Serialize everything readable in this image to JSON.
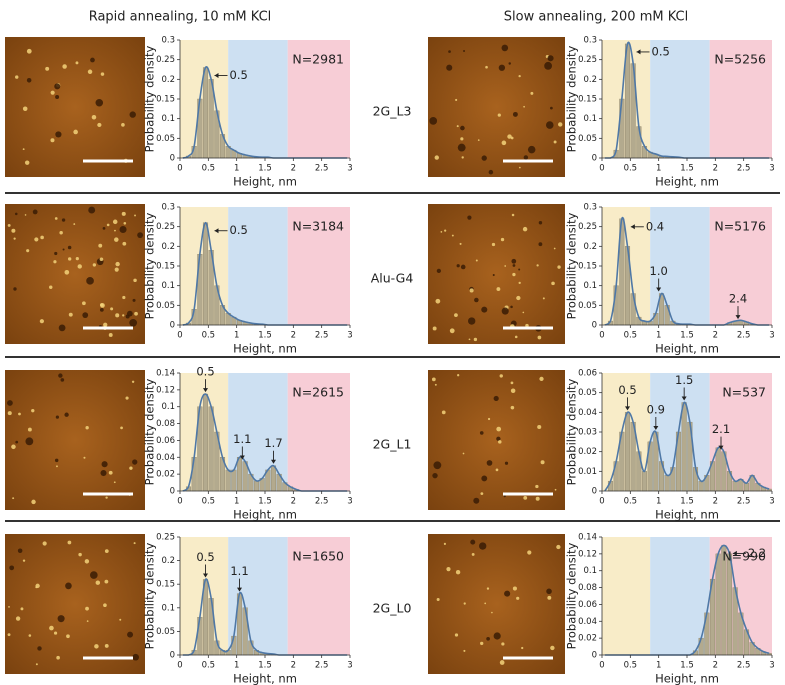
{
  "column_titles": [
    "Rapid annealing, 10 mM KCl",
    "Slow annealing, 200 mM KCl"
  ],
  "row_labels": [
    "2G_L3",
    "Alu-G4",
    "2G_L1",
    "2G_L0"
  ],
  "regions": [
    {
      "from": 0,
      "to": 0.85,
      "color": "#f8ecc8"
    },
    {
      "from": 0.85,
      "to": 1.9,
      "color": "#cde0f2"
    },
    {
      "from": 1.9,
      "to": 3,
      "color": "#f7cdd6"
    }
  ],
  "chart_data": [
    {
      "type": "histogram",
      "xlabel": "Height, nm",
      "ylabel": "Probability density",
      "n_label": "N=2981",
      "color": "#b3aa8e",
      "curve_color": "#4f78a6",
      "bins": [
        0,
        0.1,
        0.2,
        0.3,
        0.4,
        0.5,
        0.6,
        0.7,
        0.8,
        0.9,
        1,
        1.1,
        1.2,
        1.3,
        1.4,
        1.5,
        1.6,
        1.7,
        1.8,
        1.9,
        2,
        2.1,
        2.2,
        2.3,
        2.4,
        2.5,
        2.6,
        2.7,
        2.8,
        2.9,
        3
      ],
      "values": [
        0,
        0.005,
        0.03,
        0.15,
        0.23,
        0.2,
        0.12,
        0.06,
        0.03,
        0.02,
        0.012,
        0.008,
        0.005,
        0.003,
        0.002,
        0.002,
        0,
        0,
        0,
        0,
        0,
        0,
        0,
        0,
        0,
        0,
        0,
        0,
        0,
        0
      ],
      "xlim": [
        0,
        3
      ],
      "xticks": [
        0,
        0.5,
        1,
        1.5,
        2,
        2.5,
        3
      ],
      "ylim": [
        0,
        0.3
      ],
      "yticks": [
        0,
        0.05,
        0.1,
        0.15,
        0.2,
        0.25,
        0.3
      ],
      "annotations": [
        {
          "label": "0.5",
          "x": 0.45,
          "arrow": "left"
        }
      ]
    },
    {
      "type": "histogram",
      "xlabel": "Height, nm",
      "ylabel": "Probability density",
      "n_label": "N=5256",
      "color": "#b3aa8e",
      "curve_color": "#4f78a6",
      "bins": [
        0,
        0.1,
        0.2,
        0.3,
        0.4,
        0.5,
        0.6,
        0.7,
        0.8,
        0.9,
        1,
        1.1,
        1.2,
        1.3,
        1.4,
        1.5,
        1.6,
        1.7,
        1.8,
        1.9,
        2,
        2.1,
        2.2,
        2.3,
        2.4,
        2.5,
        2.6,
        2.7,
        2.8,
        2.9,
        3
      ],
      "values": [
        0,
        0,
        0.02,
        0.15,
        0.29,
        0.24,
        0.08,
        0.03,
        0.015,
        0.01,
        0.005,
        0.004,
        0.003,
        0.002,
        0,
        0,
        0,
        0,
        0,
        0,
        0,
        0,
        0,
        0,
        0,
        0,
        0,
        0,
        0,
        0
      ],
      "xlim": [
        0,
        3
      ],
      "xticks": [
        0,
        0.5,
        1,
        1.5,
        2,
        2.5,
        3
      ],
      "ylim": [
        0,
        0.3
      ],
      "yticks": [
        0,
        0.05,
        0.1,
        0.15,
        0.2,
        0.25,
        0.3
      ],
      "annotations": [
        {
          "label": "0.5",
          "x": 0.45,
          "arrow": "left"
        }
      ]
    },
    {
      "type": "histogram",
      "xlabel": "Height, nm",
      "ylabel": "Probability density",
      "n_label": "N=3184",
      "color": "#b3aa8e",
      "curve_color": "#4f78a6",
      "bins": [
        0,
        0.1,
        0.2,
        0.3,
        0.4,
        0.5,
        0.6,
        0.7,
        0.8,
        0.9,
        1,
        1.1,
        1.2,
        1.3,
        1.4,
        1.5,
        1.6,
        1.7,
        1.8,
        1.9,
        2,
        2.1,
        2.2,
        2.3,
        2.4,
        2.5,
        2.6,
        2.7,
        2.8,
        2.9,
        3
      ],
      "values": [
        0,
        0.005,
        0.04,
        0.18,
        0.26,
        0.19,
        0.1,
        0.05,
        0.03,
        0.02,
        0.012,
        0.008,
        0.005,
        0.003,
        0.002,
        0,
        0,
        0,
        0,
        0,
        0,
        0,
        0,
        0,
        0,
        0,
        0,
        0,
        0,
        0
      ],
      "xlim": [
        0,
        3
      ],
      "xticks": [
        0,
        0.5,
        1,
        1.5,
        2,
        2.5,
        3
      ],
      "ylim": [
        0,
        0.3
      ],
      "yticks": [
        0,
        0.05,
        0.1,
        0.15,
        0.2,
        0.25,
        0.3
      ],
      "annotations": [
        {
          "label": "0.5",
          "x": 0.45,
          "arrow": "left"
        }
      ]
    },
    {
      "type": "histogram",
      "xlabel": "Height, nm",
      "ylabel": "Probability density",
      "n_label": "N=5176",
      "color": "#b3aa8e",
      "curve_color": "#4f78a6",
      "bins": [
        0,
        0.1,
        0.2,
        0.3,
        0.4,
        0.5,
        0.6,
        0.7,
        0.8,
        0.9,
        1,
        1.1,
        1.2,
        1.3,
        1.4,
        1.5,
        1.6,
        1.7,
        1.8,
        1.9,
        2,
        2.1,
        2.2,
        2.3,
        2.4,
        2.5,
        2.6,
        2.7,
        2.8,
        2.9,
        3
      ],
      "values": [
        0,
        0.01,
        0.1,
        0.27,
        0.2,
        0.08,
        0.02,
        0.01,
        0.01,
        0.03,
        0.08,
        0.05,
        0.01,
        0.003,
        0.002,
        0.002,
        0,
        0,
        0,
        0,
        0,
        0,
        0.006,
        0.01,
        0.012,
        0.008,
        0.003,
        0,
        0,
        0
      ],
      "xlim": [
        0,
        3
      ],
      "xticks": [
        0,
        0.5,
        1,
        1.5,
        2,
        2.5,
        3
      ],
      "ylim": [
        0,
        0.3
      ],
      "yticks": [
        0,
        0.05,
        0.1,
        0.15,
        0.2,
        0.25,
        0.3
      ],
      "annotations": [
        {
          "label": "0.4",
          "x": 0.35,
          "arrow": "left"
        },
        {
          "label": "1.0",
          "x": 1.0,
          "arrow": "down"
        },
        {
          "label": "2.4",
          "x": 2.4,
          "arrow": "down"
        }
      ]
    },
    {
      "type": "histogram",
      "xlabel": "Height, nm",
      "ylabel": "Probability density",
      "n_label": "N=2615",
      "color": "#b3aa8e",
      "curve_color": "#4f78a6",
      "bins": [
        0,
        0.1,
        0.2,
        0.3,
        0.4,
        0.5,
        0.6,
        0.7,
        0.8,
        0.9,
        1,
        1.1,
        1.2,
        1.3,
        1.4,
        1.5,
        1.6,
        1.7,
        1.8,
        1.9,
        2,
        2.1,
        2.2,
        2.3,
        2.4,
        2.5,
        2.6,
        2.7,
        2.8,
        2.9,
        3
      ],
      "values": [
        0,
        0.005,
        0.04,
        0.1,
        0.115,
        0.1,
        0.07,
        0.04,
        0.025,
        0.025,
        0.04,
        0.035,
        0.02,
        0.012,
        0.015,
        0.025,
        0.03,
        0.02,
        0.01,
        0.005,
        0.002,
        0,
        0,
        0,
        0,
        0,
        0,
        0,
        0,
        0
      ],
      "xlim": [
        0,
        3
      ],
      "xticks": [
        0,
        0.5,
        1,
        1.5,
        2,
        2.5,
        3
      ],
      "ylim": [
        0,
        0.14
      ],
      "yticks": [
        0,
        0.02,
        0.04,
        0.06,
        0.08,
        0.1,
        0.12,
        0.14
      ],
      "annotations": [
        {
          "label": "0.5",
          "x": 0.45,
          "arrow": "down"
        },
        {
          "label": "1.1",
          "x": 1.1,
          "arrow": "down"
        },
        {
          "label": "1.7",
          "x": 1.65,
          "arrow": "down"
        }
      ]
    },
    {
      "type": "histogram",
      "xlabel": "Height, nm",
      "ylabel": "Probability density",
      "n_label": "N=537",
      "color": "#b3aa8e",
      "curve_color": "#4f78a6",
      "bins": [
        0,
        0.1,
        0.2,
        0.3,
        0.4,
        0.5,
        0.6,
        0.7,
        0.8,
        0.9,
        1,
        1.1,
        1.2,
        1.3,
        1.4,
        1.5,
        1.6,
        1.7,
        1.8,
        1.9,
        2,
        2.1,
        2.2,
        2.3,
        2.4,
        2.5,
        2.6,
        2.7,
        2.8,
        2.9,
        3
      ],
      "values": [
        0,
        0.005,
        0.015,
        0.03,
        0.04,
        0.035,
        0.02,
        0.01,
        0.025,
        0.03,
        0.015,
        0.008,
        0.012,
        0.03,
        0.045,
        0.035,
        0.012,
        0.005,
        0.008,
        0.015,
        0.022,
        0.02,
        0.01,
        0.005,
        0.006,
        0.004,
        0.008,
        0.004,
        0.002,
        0.001
      ],
      "xlim": [
        0,
        3
      ],
      "xticks": [
        0,
        0.5,
        1,
        1.5,
        2,
        2.5,
        3
      ],
      "ylim": [
        0,
        0.06
      ],
      "yticks": [
        0,
        0.01,
        0.02,
        0.03,
        0.04,
        0.05,
        0.06
      ],
      "annotations": [
        {
          "label": "0.5",
          "x": 0.45,
          "arrow": "down"
        },
        {
          "label": "0.9",
          "x": 0.95,
          "arrow": "down"
        },
        {
          "label": "1.5",
          "x": 1.45,
          "arrow": "down"
        },
        {
          "label": "2.1",
          "x": 2.1,
          "arrow": "down"
        }
      ]
    },
    {
      "type": "histogram",
      "xlabel": "Height, nm",
      "ylabel": "Probability density",
      "n_label": "N=1650",
      "color": "#b3aa8e",
      "curve_color": "#4f78a6",
      "bins": [
        0,
        0.1,
        0.2,
        0.3,
        0.4,
        0.5,
        0.6,
        0.7,
        0.8,
        0.9,
        1,
        1.1,
        1.2,
        1.3,
        1.4,
        1.5,
        1.6,
        1.7,
        1.8,
        1.9,
        2,
        2.1,
        2.2,
        2.3,
        2.4,
        2.5,
        2.6,
        2.7,
        2.8,
        2.9,
        3
      ],
      "values": [
        0,
        0,
        0.01,
        0.08,
        0.16,
        0.12,
        0.03,
        0.01,
        0.01,
        0.04,
        0.13,
        0.1,
        0.03,
        0.01,
        0.005,
        0.003,
        0.002,
        0,
        0,
        0,
        0,
        0,
        0,
        0,
        0,
        0,
        0,
        0,
        0,
        0
      ],
      "xlim": [
        0,
        3
      ],
      "xticks": [
        0,
        0.5,
        1,
        1.5,
        2,
        2.5,
        3
      ],
      "ylim": [
        0,
        0.25
      ],
      "yticks": [
        0,
        0.05,
        0.1,
        0.15,
        0.2,
        0.25
      ],
      "annotations": [
        {
          "label": "0.5",
          "x": 0.45,
          "arrow": "down"
        },
        {
          "label": "1.1",
          "x": 1.05,
          "arrow": "down"
        }
      ]
    },
    {
      "type": "histogram",
      "xlabel": "Height, nm",
      "ylabel": "Probability density",
      "n_label": "N=990",
      "color": "#b3aa8e",
      "curve_color": "#4f78a6",
      "bins": [
        0,
        0.1,
        0.2,
        0.3,
        0.4,
        0.5,
        0.6,
        0.7,
        0.8,
        0.9,
        1,
        1.1,
        1.2,
        1.3,
        1.4,
        1.5,
        1.6,
        1.7,
        1.8,
        1.9,
        2,
        2.1,
        2.2,
        2.3,
        2.4,
        2.5,
        2.6,
        2.7,
        2.8,
        2.9,
        3
      ],
      "values": [
        0,
        0,
        0,
        0,
        0,
        0,
        0,
        0,
        0,
        0,
        0,
        0,
        0,
        0,
        0,
        0,
        0.005,
        0.02,
        0.05,
        0.09,
        0.12,
        0.13,
        0.12,
        0.08,
        0.05,
        0.03,
        0.015,
        0.008,
        0.004,
        0.002
      ],
      "xlim": [
        0,
        3
      ],
      "xticks": [
        0,
        0.5,
        1,
        1.5,
        2,
        2.5,
        3
      ],
      "ylim": [
        0,
        0.14
      ],
      "yticks": [
        0,
        0.02,
        0.04,
        0.06,
        0.08,
        0.1,
        0.12,
        0.14
      ],
      "annotations": [
        {
          "label": "2.2",
          "x": 2.15,
          "arrow": "left"
        }
      ]
    }
  ]
}
